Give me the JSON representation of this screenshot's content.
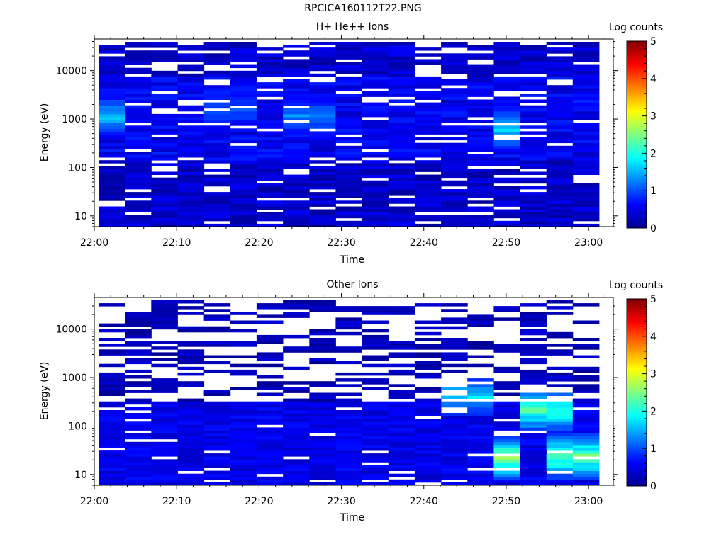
{
  "page_title": "RPCICA160112T22.PNG",
  "chart_data": [
    {
      "type": "heatmap",
      "title": "H+ He++ Ions",
      "xlabel": "Time",
      "ylabel": "Energy (eV)",
      "x_ticks": [
        "22:00",
        "22:10",
        "22:20",
        "22:30",
        "22:40",
        "22:50",
        "23:00"
      ],
      "x_range": [
        "22:00",
        "23:03"
      ],
      "y_scale": "log",
      "y_ticks": [
        "10",
        "100",
        "1000",
        "10000"
      ],
      "y_range": [
        6,
        45000
      ],
      "colorbar": {
        "label": "Log counts",
        "range": [
          0,
          5
        ],
        "ticks": [
          "0",
          "1",
          "2",
          "3",
          "4",
          "5"
        ]
      },
      "peaks": [
        {
          "time": "22:01",
          "energy_ev": 1100,
          "log_counts": 1.7
        },
        {
          "time": "22:17",
          "energy_ev": 1500,
          "log_counts": 1.2
        },
        {
          "time": "22:27",
          "energy_ev": 1100,
          "log_counts": 1.4
        },
        {
          "time": "22:50",
          "energy_ev": 600,
          "log_counts": 1.9
        }
      ]
    },
    {
      "type": "heatmap",
      "title": "Other Ions",
      "xlabel": "Time",
      "ylabel": "Energy (eV)",
      "x_ticks": [
        "22:00",
        "22:10",
        "22:20",
        "22:30",
        "22:40",
        "22:50",
        "23:00"
      ],
      "x_range": [
        "22:00",
        "23:03"
      ],
      "y_scale": "log",
      "y_ticks": [
        "10",
        "100",
        "1000",
        "10000"
      ],
      "y_range": [
        6,
        45000
      ],
      "colorbar": {
        "label": "Log counts",
        "range": [
          0,
          5
        ],
        "ticks": [
          "0",
          "1",
          "2",
          "3",
          "4",
          "5"
        ]
      },
      "peaks": [
        {
          "time": "22:44",
          "energy_ev": 400,
          "log_counts": 1.9
        },
        {
          "time": "22:50",
          "energy_ev": 20,
          "log_counts": 2.8
        },
        {
          "time": "22:54",
          "energy_ev": 200,
          "log_counts": 2.4
        },
        {
          "time": "22:58",
          "energy_ev": 22,
          "log_counts": 2.6
        }
      ]
    }
  ]
}
